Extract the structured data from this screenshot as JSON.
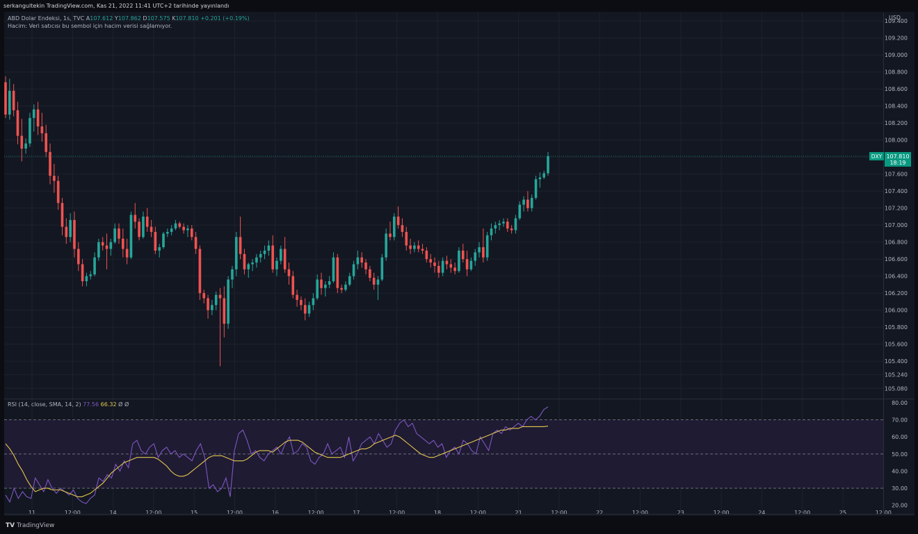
{
  "header": {
    "publisher_line": "serkangultekin TradingView.com, Kas 21, 2022 11:41 UTC+2 tarihinde yayınlandı",
    "symbol": "ABD Dolar Endeksi, 1s, TVC",
    "ohlc": [
      {
        "k": "A",
        "v": "107.612"
      },
      {
        "k": "Y",
        "v": "107.862"
      },
      {
        "k": "D",
        "v": "107.575"
      },
      {
        "k": "K",
        "v": "107.810"
      }
    ],
    "change": "+0.201 (+0.19%)",
    "volume_note": "Hacim: Veri satıcısı bu sembol için hacim verisi sağlamıyor."
  },
  "currency_label": "USD",
  "brand": "TradingView",
  "brand_icon": "tradingview-logo-icon",
  "price_tag": {
    "symbol": "DXY",
    "value": "107.810",
    "countdown": "18:19",
    "color": "#089981"
  },
  "colors": {
    "background": "#131722",
    "up": "#26a69a",
    "down": "#ef5350",
    "rsi": "#7e57c2",
    "rsi_sma": "#e5c84d",
    "rsi_band": "#1f1b33"
  },
  "chart_data": [
    {
      "type": "candlestick",
      "title": "ABD Dolar Endeksi, 1s, TVC",
      "ylim": [
        104.96,
        109.5
      ],
      "y_ticks": [
        "109.400",
        "109.200",
        "109.000",
        "108.800",
        "108.600",
        "108.400",
        "108.200",
        "108.000",
        "107.800",
        "107.600",
        "107.400",
        "107.200",
        "107.000",
        "106.800",
        "106.600",
        "106.400",
        "106.200",
        "106.000",
        "105.800",
        "105.600",
        "105.400",
        "105.240",
        "105.080"
      ],
      "x_ticks": [
        "11",
        "12:00",
        "14",
        "12:00",
        "15",
        "12:00",
        "16",
        "12:00",
        "17",
        "12:00",
        "18",
        "12:00",
        "21",
        "12:00",
        "22",
        "12:00",
        "23",
        "12:00",
        "24",
        "12:00",
        "25",
        "12:00"
      ],
      "grid": true,
      "last_price_line": 107.81,
      "candles": [
        [
          108.68,
          108.75,
          108.26,
          108.3
        ],
        [
          108.3,
          108.72,
          108.24,
          108.58
        ],
        [
          108.58,
          108.66,
          108.28,
          108.35
        ],
        [
          108.35,
          108.45,
          107.95,
          108.05
        ],
        [
          108.05,
          108.25,
          107.75,
          107.9
        ],
        [
          107.9,
          108.02,
          107.84,
          107.96
        ],
        [
          107.96,
          108.32,
          107.92,
          108.26
        ],
        [
          108.26,
          108.42,
          108.1,
          108.36
        ],
        [
          108.36,
          108.45,
          108.06,
          108.16
        ],
        [
          108.16,
          108.32,
          107.98,
          108.08
        ],
        [
          108.08,
          108.18,
          107.8,
          107.86
        ],
        [
          107.86,
          107.96,
          107.48,
          107.58
        ],
        [
          107.58,
          107.72,
          107.38,
          107.52
        ],
        [
          107.52,
          107.58,
          107.18,
          107.26
        ],
        [
          107.26,
          107.32,
          106.88,
          106.98
        ],
        [
          106.98,
          107.08,
          106.78,
          106.86
        ],
        [
          106.86,
          107.14,
          106.8,
          107.06
        ],
        [
          107.06,
          107.16,
          106.62,
          106.72
        ],
        [
          106.72,
          106.8,
          106.46,
          106.54
        ],
        [
          106.54,
          106.6,
          106.28,
          106.34
        ],
        [
          106.34,
          106.44,
          106.28,
          106.4
        ],
        [
          106.4,
          106.46,
          106.36,
          106.42
        ],
        [
          106.42,
          106.68,
          106.4,
          106.62
        ],
        [
          106.62,
          106.84,
          106.58,
          106.8
        ],
        [
          106.8,
          106.86,
          106.7,
          106.76
        ],
        [
          106.76,
          106.9,
          106.48,
          106.72
        ],
        [
          106.72,
          106.84,
          106.64,
          106.8
        ],
        [
          106.8,
          107.02,
          106.78,
          106.96
        ],
        [
          106.96,
          107.02,
          106.78,
          106.84
        ],
        [
          106.84,
          106.96,
          106.62,
          106.72
        ],
        [
          106.72,
          106.84,
          106.54,
          106.62
        ],
        [
          106.62,
          107.16,
          106.6,
          107.12
        ],
        [
          107.12,
          107.26,
          106.96,
          107.04
        ],
        [
          107.04,
          107.08,
          106.82,
          106.86
        ],
        [
          106.86,
          107.16,
          106.84,
          107.1
        ],
        [
          107.1,
          107.2,
          106.92,
          106.98
        ],
        [
          106.98,
          107.06,
          106.86,
          106.92
        ],
        [
          106.92,
          106.98,
          106.66,
          106.7
        ],
        [
          106.7,
          106.78,
          106.62,
          106.74
        ],
        [
          106.74,
          106.92,
          106.72,
          106.9
        ],
        [
          106.9,
          106.96,
          106.86,
          106.92
        ],
        [
          106.92,
          107.0,
          106.88,
          106.96
        ],
        [
          106.96,
          107.06,
          106.94,
          107.02
        ],
        [
          107.02,
          107.04,
          106.96,
          106.98
        ],
        [
          106.98,
          107.02,
          106.9,
          106.94
        ],
        [
          106.94,
          107.0,
          106.86,
          106.96
        ],
        [
          106.96,
          107.0,
          106.82,
          106.86
        ],
        [
          106.86,
          106.92,
          106.66,
          106.72
        ],
        [
          106.72,
          106.76,
          106.12,
          106.2
        ],
        [
          106.2,
          106.24,
          106.08,
          106.14
        ],
        [
          106.14,
          106.18,
          105.9,
          106.0
        ],
        [
          106.0,
          106.12,
          105.94,
          106.06
        ],
        [
          106.06,
          106.22,
          106.0,
          106.18
        ],
        [
          106.18,
          106.26,
          105.34,
          106.14
        ],
        [
          106.14,
          106.28,
          105.68,
          105.84
        ],
        [
          105.84,
          106.4,
          105.78,
          106.36
        ],
        [
          106.36,
          106.52,
          106.26,
          106.48
        ],
        [
          106.48,
          106.92,
          106.4,
          106.86
        ],
        [
          106.86,
          107.1,
          106.6,
          106.66
        ],
        [
          106.66,
          106.72,
          106.42,
          106.48
        ],
        [
          106.48,
          106.56,
          106.38,
          106.54
        ],
        [
          106.54,
          106.6,
          106.46,
          106.56
        ],
        [
          106.56,
          106.66,
          106.5,
          106.62
        ],
        [
          106.62,
          106.7,
          106.56,
          106.66
        ],
        [
          106.66,
          106.76,
          106.6,
          106.7
        ],
        [
          106.7,
          106.82,
          106.64,
          106.76
        ],
        [
          106.76,
          106.88,
          106.44,
          106.48
        ],
        [
          106.48,
          106.62,
          106.4,
          106.58
        ],
        [
          106.58,
          106.76,
          106.54,
          106.72
        ],
        [
          106.72,
          106.86,
          106.44,
          106.48
        ],
        [
          106.48,
          106.56,
          106.3,
          106.4
        ],
        [
          106.4,
          106.46,
          106.14,
          106.18
        ],
        [
          106.18,
          106.24,
          106.04,
          106.12
        ],
        [
          106.12,
          106.16,
          106.0,
          106.06
        ],
        [
          106.06,
          106.14,
          105.88,
          105.96
        ],
        [
          105.96,
          106.1,
          105.92,
          106.06
        ],
        [
          106.06,
          106.2,
          106.0,
          106.14
        ],
        [
          106.14,
          106.42,
          106.12,
          106.36
        ],
        [
          106.36,
          106.44,
          106.18,
          106.26
        ],
        [
          106.26,
          106.34,
          106.16,
          106.3
        ],
        [
          106.3,
          106.4,
          106.26,
          106.34
        ],
        [
          106.34,
          106.68,
          106.32,
          106.62
        ],
        [
          106.62,
          106.66,
          106.2,
          106.26
        ],
        [
          106.26,
          106.3,
          106.2,
          106.24
        ],
        [
          106.24,
          106.34,
          106.22,
          106.3
        ],
        [
          106.3,
          106.44,
          106.28,
          106.4
        ],
        [
          106.4,
          106.58,
          106.36,
          106.54
        ],
        [
          106.54,
          106.7,
          106.48,
          106.62
        ],
        [
          106.62,
          106.68,
          106.5,
          106.56
        ],
        [
          106.56,
          106.6,
          106.42,
          106.48
        ],
        [
          106.48,
          106.52,
          106.34,
          106.38
        ],
        [
          106.38,
          106.44,
          106.24,
          106.3
        ],
        [
          106.3,
          106.4,
          106.12,
          106.36
        ],
        [
          106.36,
          106.66,
          106.34,
          106.62
        ],
        [
          106.62,
          106.96,
          106.58,
          106.9
        ],
        [
          106.9,
          107.04,
          106.82,
          106.86
        ],
        [
          106.86,
          107.14,
          106.82,
          107.1
        ],
        [
          107.1,
          107.22,
          106.96,
          107.0
        ],
        [
          107.0,
          107.08,
          106.86,
          106.92
        ],
        [
          106.92,
          106.98,
          106.7,
          106.76
        ],
        [
          106.76,
          106.84,
          106.66,
          106.72
        ],
        [
          106.72,
          106.8,
          106.68,
          106.76
        ],
        [
          106.76,
          106.82,
          106.68,
          106.72
        ],
        [
          106.72,
          106.78,
          106.66,
          106.7
        ],
        [
          106.7,
          106.74,
          106.56,
          106.6
        ],
        [
          106.6,
          106.66,
          106.5,
          106.56
        ],
        [
          106.56,
          106.62,
          106.44,
          106.52
        ],
        [
          106.52,
          106.58,
          106.38,
          106.44
        ],
        [
          106.44,
          106.62,
          106.4,
          106.58
        ],
        [
          106.58,
          106.64,
          106.48,
          106.54
        ],
        [
          106.54,
          106.6,
          106.44,
          106.5
        ],
        [
          106.5,
          106.56,
          106.42,
          106.46
        ],
        [
          106.46,
          106.74,
          106.44,
          106.7
        ],
        [
          106.7,
          106.78,
          106.56,
          106.6
        ],
        [
          106.6,
          106.7,
          106.4,
          106.48
        ],
        [
          106.48,
          106.62,
          106.46,
          106.58
        ],
        [
          106.58,
          106.72,
          106.52,
          106.68
        ],
        [
          106.68,
          106.8,
          106.62,
          106.74
        ],
        [
          106.74,
          106.96,
          106.56,
          106.62
        ],
        [
          106.62,
          106.92,
          106.58,
          106.88
        ],
        [
          106.88,
          107.02,
          106.82,
          106.96
        ],
        [
          106.96,
          107.04,
          106.9,
          107.0
        ],
        [
          107.0,
          107.06,
          106.94,
          107.02
        ],
        [
          107.02,
          107.08,
          106.98,
          107.04
        ],
        [
          107.04,
          107.08,
          106.92,
          106.96
        ],
        [
          106.96,
          107.0,
          106.9,
          106.94
        ],
        [
          106.94,
          107.12,
          106.9,
          107.08
        ],
        [
          107.08,
          107.28,
          107.06,
          107.24
        ],
        [
          107.24,
          107.34,
          107.16,
          107.3
        ],
        [
          107.3,
          107.4,
          107.16,
          107.2
        ],
        [
          107.2,
          107.36,
          107.16,
          107.32
        ],
        [
          107.32,
          107.58,
          107.3,
          107.54
        ],
        [
          107.54,
          107.62,
          107.44,
          107.56
        ],
        [
          107.56,
          107.64,
          107.54,
          107.61
        ],
        [
          107.61,
          107.86,
          107.58,
          107.81
        ]
      ]
    },
    {
      "type": "line",
      "title": "RSI (14, close, SMA, 14, 2)",
      "values_shown": [
        "77.56",
        "66.32"
      ],
      "extra_glyphs": [
        "Ø",
        "Ø"
      ],
      "ylim": [
        15,
        82
      ],
      "y_ticks": [
        "80.00",
        "70.00",
        "60.00",
        "50.00",
        "40.00",
        "30.00",
        "20.00"
      ],
      "bands": {
        "upper": 70,
        "middle": 50,
        "lower": 30
      },
      "series": [
        {
          "name": "RSI",
          "values": [
            26,
            22,
            30,
            24,
            28,
            25,
            24,
            36,
            32,
            28,
            35,
            30,
            27,
            30,
            28,
            26,
            29,
            24,
            22,
            21,
            24,
            26,
            36,
            34,
            38,
            36,
            44,
            40,
            46,
            42,
            56,
            58,
            52,
            50,
            54,
            56,
            48,
            52,
            54,
            50,
            52,
            48,
            50,
            48,
            46,
            52,
            56,
            48,
            30,
            32,
            28,
            30,
            36,
            25,
            52,
            62,
            64,
            58,
            50,
            52,
            48,
            46,
            50,
            52,
            54,
            50,
            56,
            60,
            50,
            52,
            56,
            54,
            46,
            44,
            48,
            50,
            56,
            50,
            52,
            54,
            48,
            60,
            46,
            50,
            56,
            58,
            60,
            56,
            62,
            58,
            54,
            56,
            64,
            68,
            70,
            66,
            68,
            62,
            60,
            58,
            56,
            58,
            54,
            56,
            48,
            52,
            54,
            50,
            58,
            56,
            52,
            50,
            60,
            56,
            52,
            62,
            64,
            62,
            66,
            64,
            66,
            68,
            66,
            70,
            72,
            70,
            72,
            76,
            77.56
          ]
        },
        {
          "name": "SMA",
          "values": [
            56,
            53,
            49,
            44,
            40,
            35,
            31,
            28,
            29,
            30,
            30,
            29,
            29,
            29,
            28,
            27,
            26,
            25,
            25,
            26,
            27,
            29,
            31,
            33,
            36,
            39,
            41,
            43,
            45,
            46,
            47,
            48,
            48,
            48,
            48,
            48,
            47,
            45,
            43,
            40,
            38,
            37,
            37,
            38,
            40,
            42,
            44,
            46,
            48,
            49,
            49,
            49,
            48,
            47,
            46,
            46,
            46,
            47,
            49,
            51,
            52,
            52,
            52,
            51,
            53,
            55,
            57,
            58,
            58,
            58,
            57,
            55,
            53,
            51,
            50,
            49,
            48,
            48,
            48,
            48,
            49,
            50,
            51,
            52,
            53,
            53,
            54,
            56,
            57,
            58,
            59,
            60,
            61,
            60,
            58,
            56,
            54,
            52,
            50,
            49,
            48,
            48,
            49,
            50,
            51,
            52,
            53,
            54,
            55,
            56,
            57,
            58,
            59,
            60,
            61,
            62,
            63,
            64,
            64,
            65,
            65,
            65,
            66,
            66,
            66,
            66,
            66,
            66,
            66.32
          ]
        }
      ]
    }
  ]
}
